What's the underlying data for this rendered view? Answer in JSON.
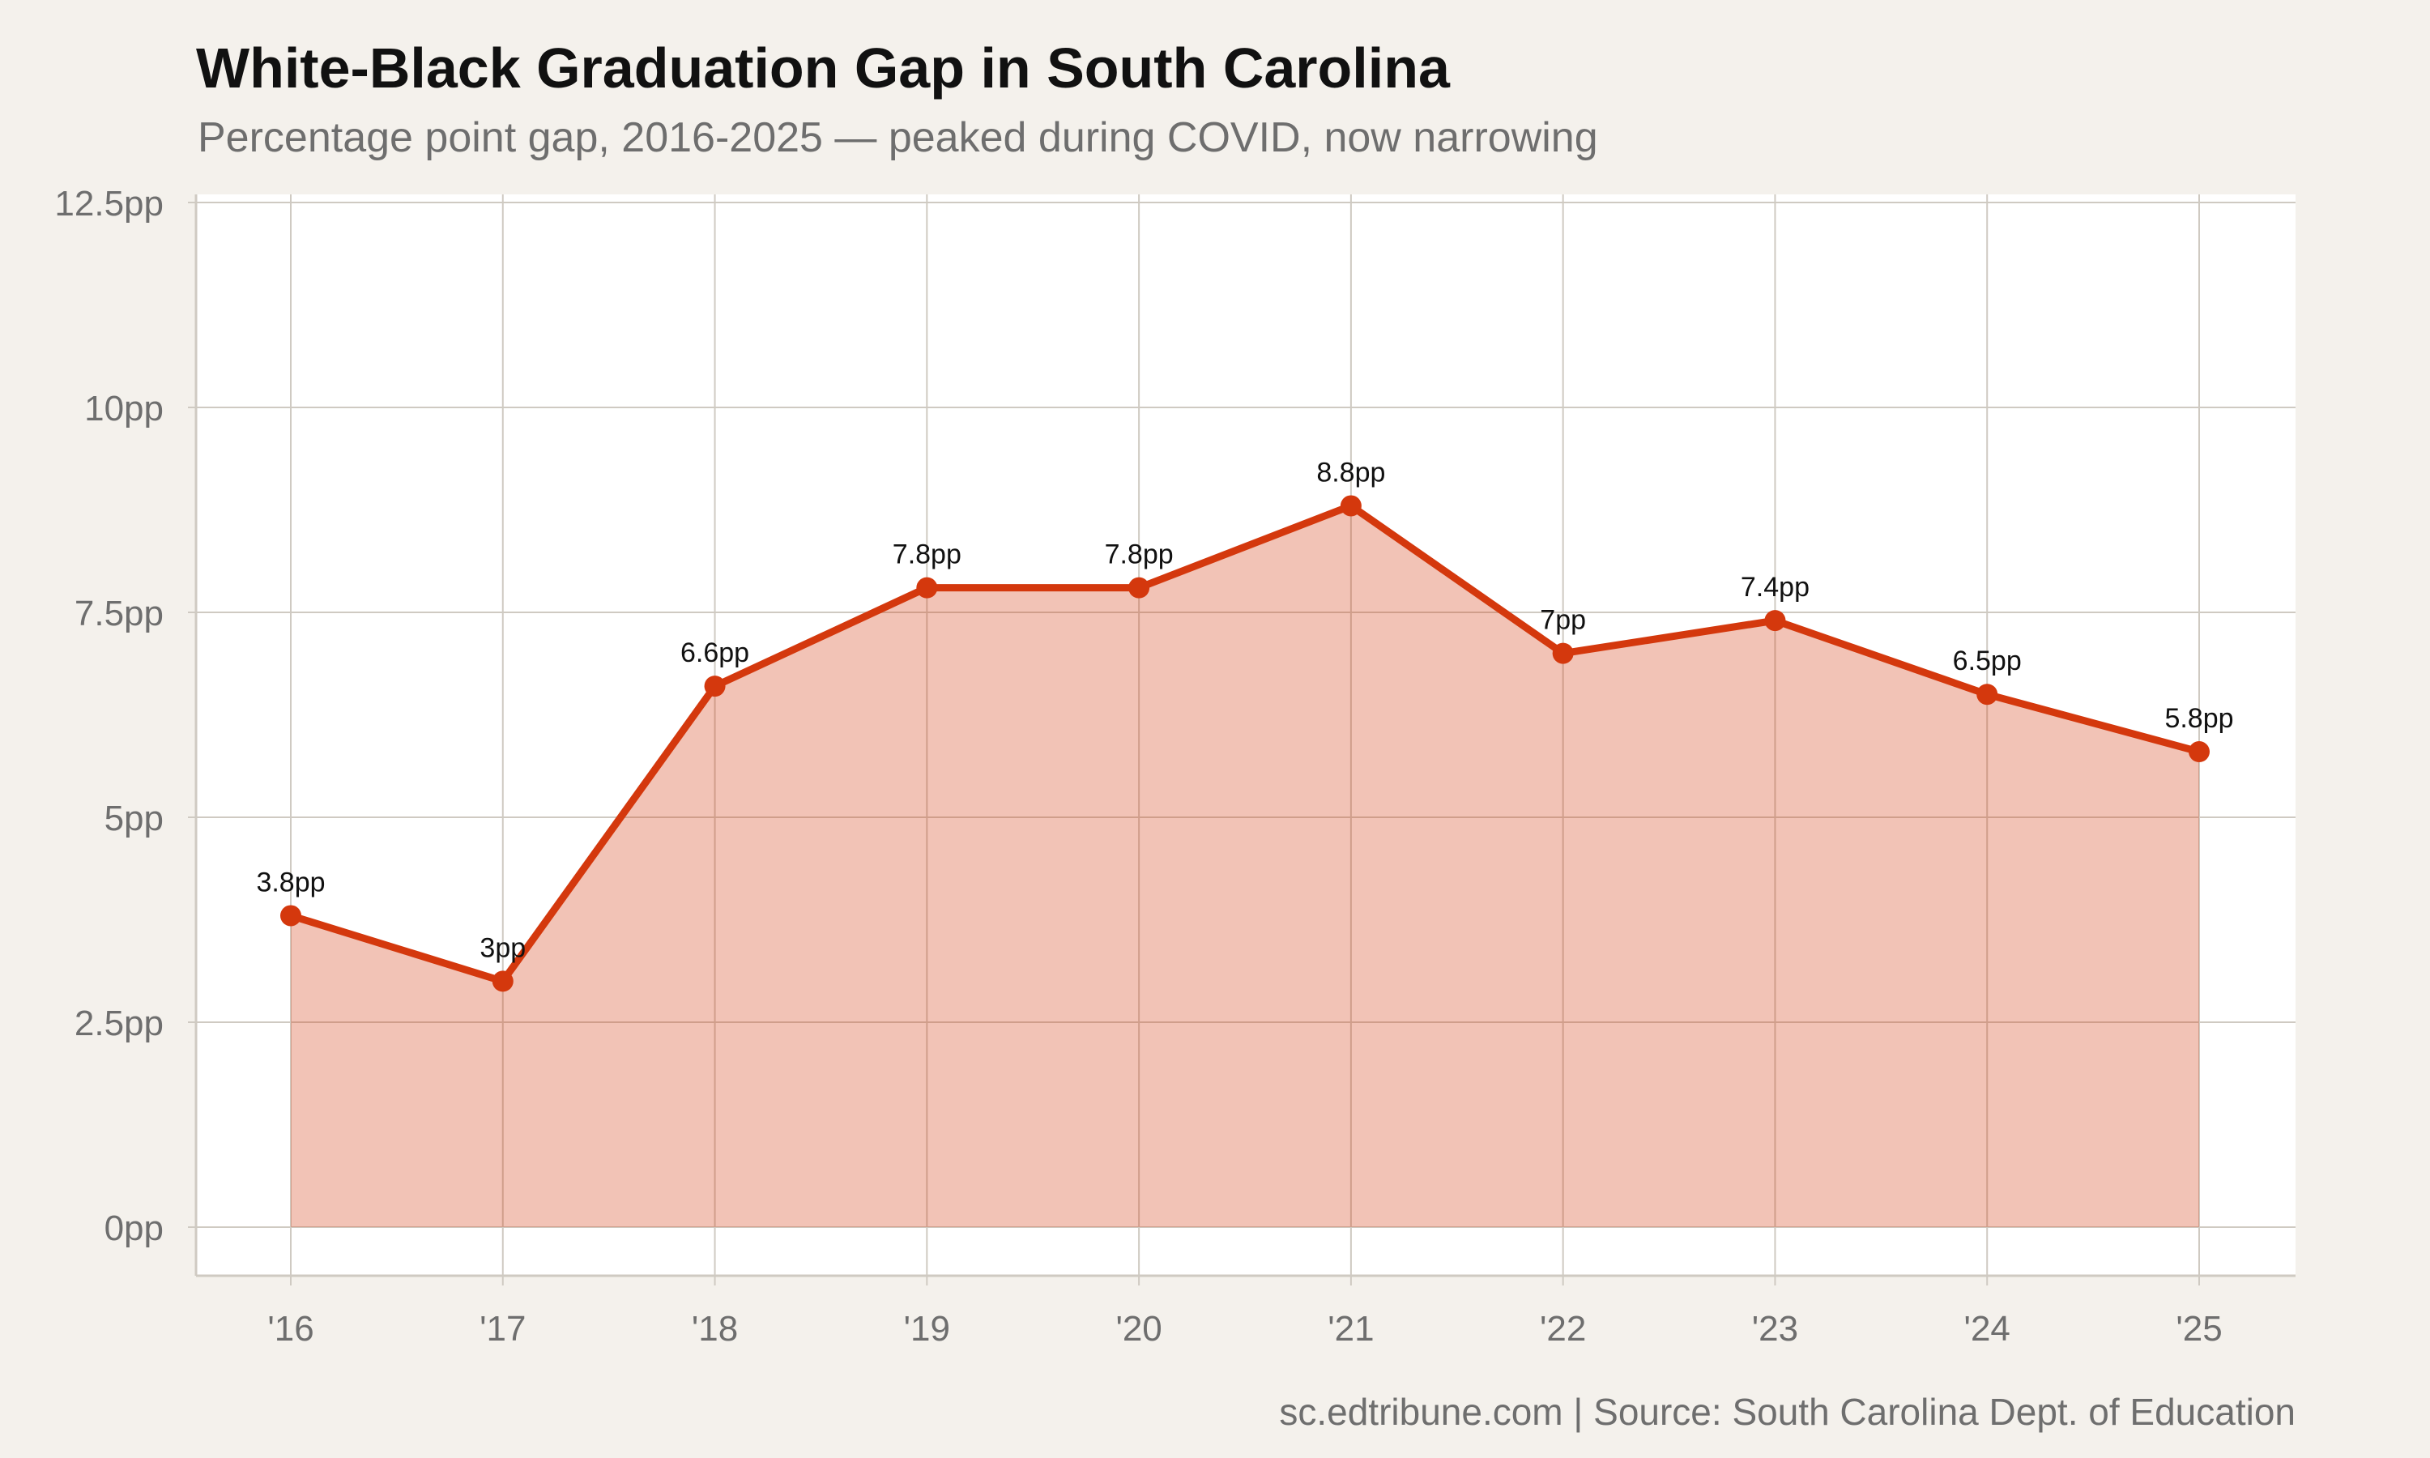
{
  "header": {
    "title": "White-Black Graduation Gap in South Carolina",
    "subtitle": "Percentage point gap, 2016-2025 — peaked during COVID, now narrowing"
  },
  "caption": "sc.edtribune.com | Source: South Carolina Dept. of Education",
  "colors": {
    "background": "#f4f1ec",
    "panel": "#ffffff",
    "line": "#d4380d",
    "area_fill": "#f1c4b8",
    "grid": "#cfcac2"
  },
  "chart_data": {
    "type": "area",
    "title": "White-Black Graduation Gap in South Carolina",
    "subtitle": "Percentage point gap, 2016-2025 — peaked during COVID, now narrowing",
    "xlabel": "",
    "ylabel": "",
    "categories": [
      "'16",
      "'17",
      "'18",
      "'19",
      "'20",
      "'21",
      "'22",
      "'23",
      "'24",
      "'25"
    ],
    "values": [
      3.8,
      3.0,
      6.6,
      7.8,
      7.8,
      8.8,
      7.0,
      7.4,
      6.5,
      5.8
    ],
    "data_labels": [
      "3.8pp",
      "3pp",
      "6.6pp",
      "7.8pp",
      "7.8pp",
      "8.8pp",
      "7pp",
      "7.4pp",
      "6.5pp",
      "5.8pp"
    ],
    "y_ticks": [
      0,
      2.5,
      5,
      7.5,
      10,
      12.5
    ],
    "y_tick_labels": [
      "0pp",
      "2.5pp",
      "5pp",
      "7.5pp",
      "10pp",
      "12.5pp"
    ],
    "ylim": [
      0,
      12.5
    ],
    "grid": true,
    "markers": true,
    "legend": "none"
  }
}
